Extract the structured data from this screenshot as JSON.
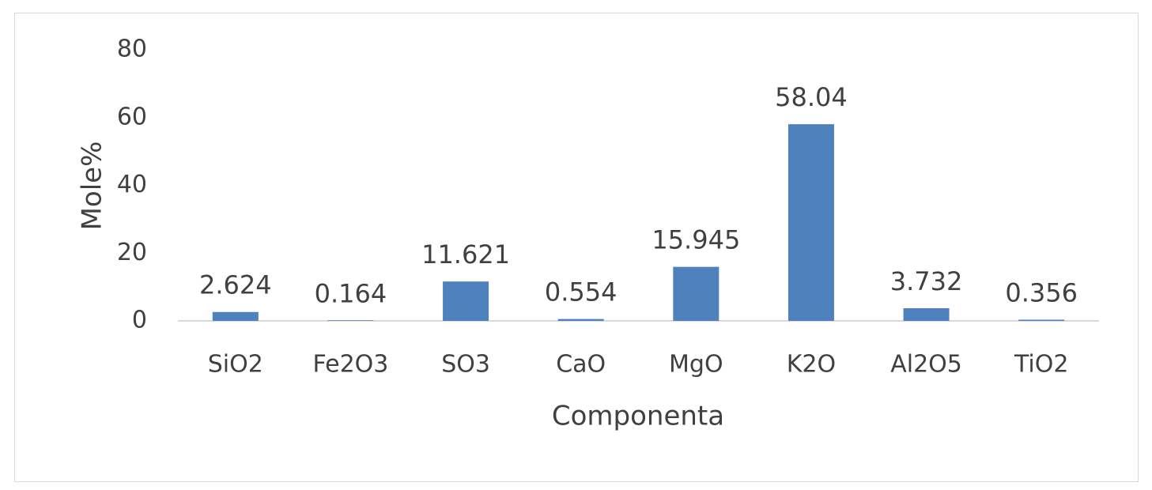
{
  "chart_data": {
    "type": "bar",
    "categories": [
      "SiO2",
      "Fe2O3",
      "SO3",
      "CaO",
      "MgO",
      "K2O",
      "Al2O5",
      "TiO2"
    ],
    "values": [
      2.624,
      0.164,
      11.621,
      0.554,
      15.945,
      58.04,
      3.732,
      0.356
    ],
    "data_labels": [
      "2.624",
      "0.164",
      "11.621",
      "0.554",
      "15.945",
      "58.04",
      "3.732",
      "0.356"
    ],
    "title": "",
    "xlabel": "Componenta",
    "ylabel": "Mole%",
    "ylim": [
      0,
      80
    ],
    "yticks": [
      "0",
      "20",
      "40",
      "60",
      "80"
    ],
    "grid": false,
    "legend": "none",
    "bar_color": "#4f81bd"
  }
}
